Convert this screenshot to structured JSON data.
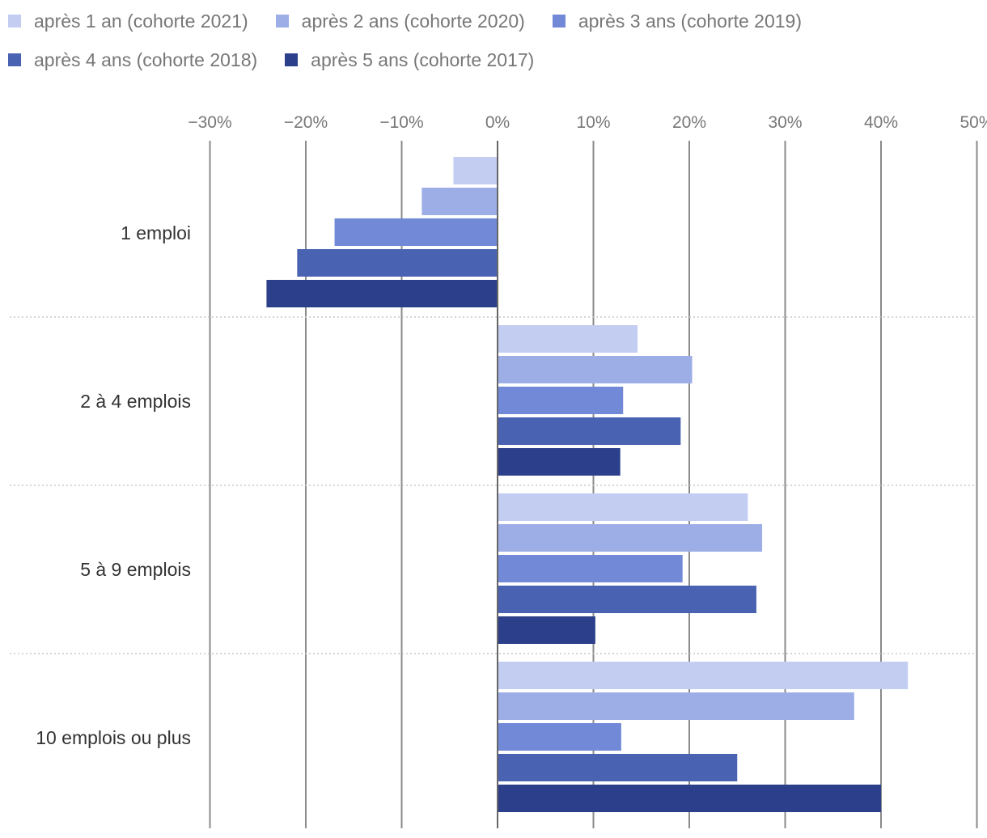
{
  "chart_data": {
    "type": "bar",
    "orientation": "horizontal",
    "categories": [
      "1 emploi",
      "2 à 4 emplois",
      "5 à 9 emplois",
      "10 emplois ou plus"
    ],
    "series": [
      {
        "name": "après 1 an (cohorte 2021)",
        "color": "#c3cdf2",
        "values": [
          -4.6,
          14.6,
          26.1,
          42.8
        ]
      },
      {
        "name": "après 2 ans (cohorte 2020)",
        "color": "#9daee6",
        "values": [
          -7.9,
          20.3,
          27.6,
          37.2
        ]
      },
      {
        "name": "après 3 ans (cohorte 2019)",
        "color": "#7189d7",
        "values": [
          -17.0,
          13.1,
          19.3,
          12.9
        ]
      },
      {
        "name": "après 4 ans (cohorte 2018)",
        "color": "#4a62b2",
        "values": [
          -20.9,
          19.1,
          27.0,
          25.0
        ]
      },
      {
        "name": "après 5 ans (cohorte 2017)",
        "color": "#2b3f8a",
        "values": [
          -24.1,
          12.8,
          10.2,
          40.0
        ]
      }
    ],
    "xlim": [
      -30,
      50
    ],
    "ticks": [
      -30,
      -20,
      -10,
      0,
      10,
      20,
      30,
      40,
      50
    ],
    "tick_labels": [
      "−30%",
      "−20%",
      "−10%",
      "0%",
      "10%",
      "20%",
      "30%",
      "40%",
      "50%"
    ],
    "legend_position": "top",
    "grid": true
  }
}
